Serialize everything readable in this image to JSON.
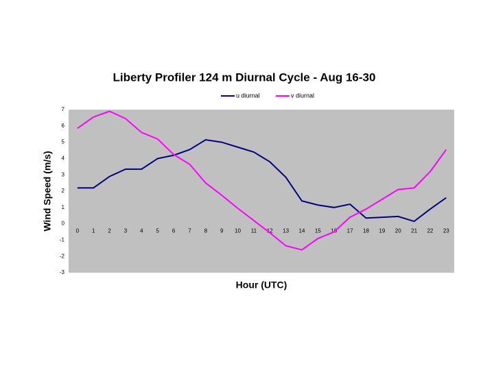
{
  "chart_data": {
    "type": "line",
    "title": "Liberty Profiler 124 m Diurnal Cycle - Aug 16-30",
    "x_label": "Hour (UTC)",
    "y_label": "Wind Speed (m/s)",
    "x": [
      0,
      1,
      2,
      3,
      4,
      5,
      6,
      7,
      8,
      9,
      10,
      11,
      12,
      13,
      14,
      15,
      16,
      17,
      18,
      19,
      20,
      21,
      22,
      23
    ],
    "xlim": [
      -0.55,
      23.5
    ],
    "xticks": [
      0,
      1,
      2,
      3,
      4,
      5,
      6,
      7,
      8,
      9,
      10,
      11,
      12,
      13,
      14,
      15,
      16,
      17,
      18,
      19,
      20,
      21,
      22,
      23
    ],
    "ylim": [
      -3,
      7
    ],
    "yticks": [
      -3,
      -2,
      -1,
      0,
      1,
      2,
      3,
      4,
      5,
      6,
      7
    ],
    "grid": false,
    "legend": "top",
    "series": [
      {
        "name": "u diurnal",
        "color": "#000080",
        "values": [
          2.2,
          2.2,
          2.9,
          3.35,
          3.35,
          4.0,
          4.2,
          4.55,
          5.15,
          5.0,
          4.7,
          4.4,
          3.8,
          2.85,
          1.4,
          1.15,
          1.0,
          1.2,
          0.35,
          0.4,
          0.45,
          0.15,
          0.9,
          1.6
        ]
      },
      {
        "name": "v diurnal",
        "color": "#ff00ff",
        "values": [
          5.85,
          6.55,
          6.9,
          6.45,
          5.6,
          5.2,
          4.25,
          3.65,
          2.5,
          1.75,
          0.95,
          0.2,
          -0.55,
          -1.35,
          -1.6,
          -0.9,
          -0.5,
          0.4,
          0.9,
          1.5,
          2.1,
          2.2,
          3.2,
          4.55
        ]
      }
    ]
  }
}
